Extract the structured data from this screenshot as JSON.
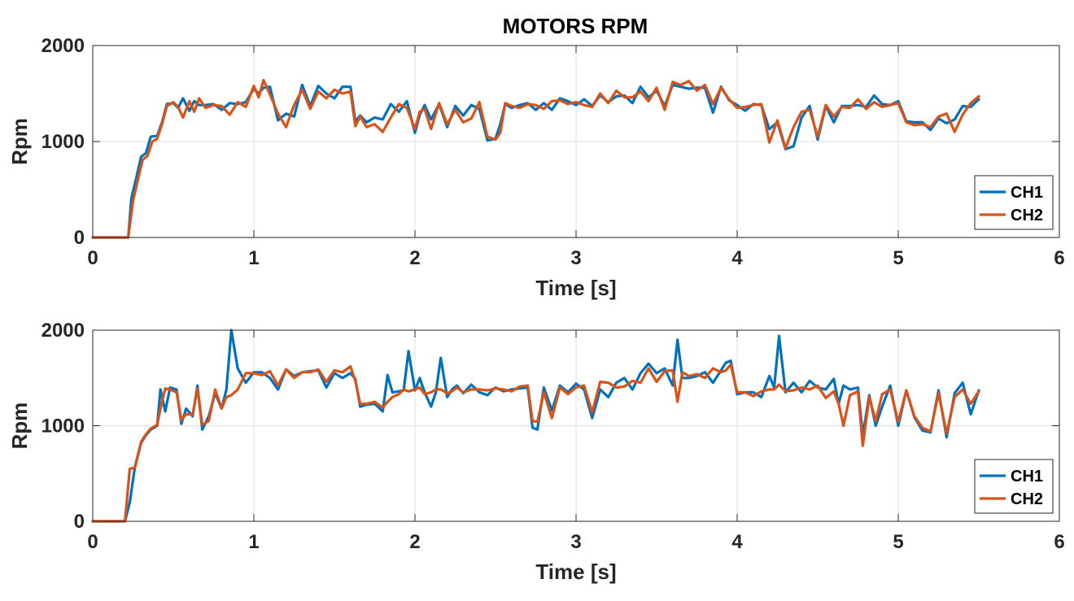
{
  "figure": {
    "title": "MOTORS RPM"
  },
  "legend": {
    "entries": [
      "CH1",
      "CH2"
    ]
  },
  "chart_data": [
    {
      "type": "line",
      "title": "MOTORS RPM",
      "xlabel": "Time [s]",
      "ylabel": "Rpm",
      "xlim": [
        0,
        6
      ],
      "ylim": [
        0,
        2000
      ],
      "xticks": [
        "0",
        "1",
        "2",
        "3",
        "4",
        "5",
        "6"
      ],
      "yticks": [
        "0",
        "1000",
        "2000"
      ],
      "grid": true,
      "legend_position": "bottom-right",
      "colors": {
        "CH1": "#0072BD",
        "CH2": "#D95319"
      },
      "series": [
        {
          "name": "CH1",
          "x": [
            0,
            0.1,
            0.22,
            0.24,
            0.27,
            0.3,
            0.33,
            0.36,
            0.4,
            0.43,
            0.46,
            0.5,
            0.53,
            0.56,
            0.6,
            0.63,
            0.66,
            0.7,
            0.75,
            0.8,
            0.85,
            0.9,
            0.95,
            1.0,
            1.03,
            1.06,
            1.1,
            1.15,
            1.2,
            1.25,
            1.3,
            1.35,
            1.4,
            1.45,
            1.5,
            1.55,
            1.6,
            1.63,
            1.66,
            1.7,
            1.75,
            1.8,
            1.85,
            1.9,
            1.95,
            2.0,
            2.03,
            2.06,
            2.1,
            2.15,
            2.2,
            2.25,
            2.3,
            2.35,
            2.4,
            2.45,
            2.5,
            2.53,
            2.56,
            2.6,
            2.65,
            2.7,
            2.75,
            2.8,
            2.85,
            2.9,
            2.95,
            3.0,
            3.05,
            3.1,
            3.15,
            3.2,
            3.25,
            3.3,
            3.35,
            3.4,
            3.45,
            3.5,
            3.55,
            3.6,
            3.65,
            3.7,
            3.75,
            3.8,
            3.85,
            3.9,
            3.95,
            4.0,
            4.05,
            4.1,
            4.15,
            4.2,
            4.25,
            4.3,
            4.35,
            4.4,
            4.45,
            4.5,
            4.55,
            4.6,
            4.65,
            4.7,
            4.75,
            4.8,
            4.85,
            4.9,
            4.95,
            5.0,
            5.05,
            5.1,
            5.15,
            5.2,
            5.25,
            5.3,
            5.35,
            5.4,
            5.45,
            5.5
          ],
          "y": [
            0,
            0,
            0,
            410,
            620,
            840,
            880,
            1050,
            1060,
            1200,
            1390,
            1400,
            1350,
            1450,
            1320,
            1420,
            1380,
            1380,
            1390,
            1330,
            1400,
            1390,
            1410,
            1550,
            1500,
            1560,
            1570,
            1220,
            1290,
            1260,
            1590,
            1370,
            1580,
            1500,
            1450,
            1570,
            1570,
            1210,
            1270,
            1200,
            1250,
            1230,
            1390,
            1310,
            1420,
            1090,
            1280,
            1380,
            1230,
            1390,
            1150,
            1370,
            1270,
            1380,
            1340,
            1010,
            1030,
            1180,
            1390,
            1350,
            1380,
            1400,
            1330,
            1400,
            1330,
            1450,
            1420,
            1380,
            1440,
            1370,
            1480,
            1410,
            1470,
            1480,
            1400,
            1570,
            1460,
            1530,
            1370,
            1590,
            1570,
            1550,
            1560,
            1560,
            1300,
            1570,
            1430,
            1380,
            1320,
            1390,
            1380,
            1130,
            1200,
            920,
            950,
            1250,
            1370,
            1020,
            1370,
            1200,
            1370,
            1370,
            1380,
            1360,
            1480,
            1390,
            1380,
            1420,
            1210,
            1200,
            1200,
            1120,
            1240,
            1190,
            1230,
            1370,
            1360,
            1440
          ]
        },
        {
          "name": "CH2",
          "x": [
            0,
            0.1,
            0.22,
            0.25,
            0.28,
            0.31,
            0.34,
            0.37,
            0.4,
            0.43,
            0.46,
            0.5,
            0.53,
            0.56,
            0.6,
            0.63,
            0.66,
            0.7,
            0.75,
            0.8,
            0.85,
            0.9,
            0.95,
            1.0,
            1.03,
            1.06,
            1.1,
            1.15,
            1.2,
            1.25,
            1.3,
            1.35,
            1.4,
            1.45,
            1.5,
            1.55,
            1.6,
            1.63,
            1.66,
            1.7,
            1.75,
            1.8,
            1.85,
            1.9,
            1.95,
            2.0,
            2.03,
            2.06,
            2.1,
            2.15,
            2.2,
            2.25,
            2.3,
            2.35,
            2.4,
            2.45,
            2.5,
            2.53,
            2.56,
            2.6,
            2.65,
            2.7,
            2.75,
            2.8,
            2.85,
            2.9,
            2.95,
            3.0,
            3.05,
            3.1,
            3.15,
            3.2,
            3.25,
            3.3,
            3.35,
            3.4,
            3.45,
            3.5,
            3.55,
            3.6,
            3.65,
            3.7,
            3.75,
            3.8,
            3.85,
            3.9,
            3.95,
            4.0,
            4.05,
            4.1,
            4.15,
            4.2,
            4.25,
            4.3,
            4.35,
            4.4,
            4.45,
            4.5,
            4.55,
            4.6,
            4.65,
            4.7,
            4.75,
            4.8,
            4.85,
            4.9,
            4.95,
            5.0,
            5.05,
            5.1,
            5.15,
            5.2,
            5.25,
            5.3,
            5.35,
            5.4,
            5.45,
            5.5
          ],
          "y": [
            0,
            0,
            0,
            380,
            600,
            810,
            850,
            1000,
            1030,
            1180,
            1370,
            1410,
            1360,
            1250,
            1420,
            1310,
            1450,
            1350,
            1380,
            1370,
            1280,
            1410,
            1360,
            1580,
            1460,
            1640,
            1490,
            1290,
            1150,
            1380,
            1540,
            1340,
            1520,
            1450,
            1540,
            1500,
            1520,
            1160,
            1260,
            1150,
            1180,
            1100,
            1250,
            1390,
            1350,
            1130,
            1310,
            1340,
            1130,
            1400,
            1180,
            1330,
            1200,
            1240,
            1410,
            1050,
            1020,
            1090,
            1400,
            1370,
            1350,
            1390,
            1380,
            1340,
            1420,
            1430,
            1390,
            1410,
            1380,
            1360,
            1500,
            1400,
            1530,
            1460,
            1460,
            1520,
            1420,
            1560,
            1330,
            1620,
            1590,
            1630,
            1530,
            1590,
            1390,
            1560,
            1440,
            1350,
            1360,
            1380,
            1390,
            990,
            1220,
            930,
            1150,
            1310,
            1330,
            1050,
            1380,
            1260,
            1360,
            1350,
            1440,
            1340,
            1410,
            1360,
            1380,
            1400,
            1200,
            1170,
            1180,
            1150,
            1260,
            1290,
            1100,
            1280,
            1400,
            1470
          ]
        }
      ]
    },
    {
      "type": "line",
      "title": "",
      "xlabel": "Time [s]",
      "ylabel": "Rpm",
      "xlim": [
        0,
        6
      ],
      "ylim": [
        0,
        2000
      ],
      "xticks": [
        "0",
        "1",
        "2",
        "3",
        "4",
        "5",
        "6"
      ],
      "yticks": [
        "0",
        "1000",
        "2000"
      ],
      "grid": true,
      "legend_position": "bottom-right",
      "colors": {
        "CH1": "#0072BD",
        "CH2": "#D95319"
      },
      "series": [
        {
          "name": "CH1",
          "x": [
            0,
            0.1,
            0.2,
            0.23,
            0.26,
            0.3,
            0.33,
            0.36,
            0.4,
            0.42,
            0.45,
            0.48,
            0.52,
            0.55,
            0.58,
            0.62,
            0.65,
            0.68,
            0.72,
            0.76,
            0.8,
            0.83,
            0.86,
            0.9,
            0.95,
            1.0,
            1.05,
            1.1,
            1.15,
            1.2,
            1.25,
            1.3,
            1.35,
            1.4,
            1.45,
            1.5,
            1.55,
            1.6,
            1.63,
            1.66,
            1.7,
            1.75,
            1.8,
            1.83,
            1.86,
            1.9,
            1.93,
            1.96,
            2.0,
            2.03,
            2.06,
            2.1,
            2.13,
            2.16,
            2.2,
            2.23,
            2.26,
            2.3,
            2.35,
            2.4,
            2.45,
            2.5,
            2.55,
            2.6,
            2.65,
            2.7,
            2.73,
            2.76,
            2.8,
            2.85,
            2.9,
            2.95,
            3.0,
            3.05,
            3.1,
            3.15,
            3.2,
            3.25,
            3.3,
            3.35,
            3.4,
            3.45,
            3.5,
            3.55,
            3.6,
            3.63,
            3.66,
            3.7,
            3.75,
            3.8,
            3.85,
            3.9,
            3.93,
            3.96,
            4.0,
            4.05,
            4.1,
            4.15,
            4.2,
            4.23,
            4.26,
            4.3,
            4.35,
            4.4,
            4.45,
            4.5,
            4.55,
            4.6,
            4.63,
            4.66,
            4.7,
            4.75,
            4.78,
            4.82,
            4.86,
            4.9,
            4.95,
            5.0,
            5.05,
            5.1,
            5.15,
            5.2,
            5.25,
            5.3,
            5.35,
            5.4,
            5.45,
            5.5
          ],
          "y": [
            0,
            0,
            0,
            200,
            550,
            820,
            900,
            960,
            1000,
            1380,
            1150,
            1400,
            1380,
            1020,
            1180,
            1100,
            1420,
            960,
            1100,
            1340,
            1180,
            1380,
            2000,
            1600,
            1450,
            1560,
            1560,
            1500,
            1380,
            1590,
            1520,
            1560,
            1570,
            1580,
            1400,
            1550,
            1500,
            1550,
            1490,
            1200,
            1220,
            1230,
            1150,
            1530,
            1350,
            1360,
            1370,
            1780,
            1370,
            1500,
            1350,
            1200,
            1350,
            1710,
            1300,
            1380,
            1420,
            1340,
            1430,
            1350,
            1320,
            1400,
            1360,
            1380,
            1390,
            1400,
            980,
            960,
            1400,
            1160,
            1420,
            1350,
            1440,
            1380,
            1080,
            1380,
            1300,
            1450,
            1500,
            1380,
            1550,
            1650,
            1550,
            1600,
            1420,
            1900,
            1500,
            1500,
            1520,
            1560,
            1450,
            1580,
            1660,
            1680,
            1330,
            1350,
            1350,
            1300,
            1520,
            1400,
            1940,
            1350,
            1450,
            1350,
            1470,
            1400,
            1380,
            1490,
            1230,
            1420,
            1380,
            1400,
            900,
            1320,
            1000,
            1200,
            1420,
            1000,
            1370,
            1090,
            950,
            930,
            1370,
            880,
            1340,
            1450,
            1120,
            1370
          ]
        },
        {
          "name": "CH2",
          "x": [
            0,
            0.1,
            0.2,
            0.23,
            0.26,
            0.3,
            0.33,
            0.36,
            0.4,
            0.42,
            0.45,
            0.48,
            0.52,
            0.55,
            0.58,
            0.62,
            0.65,
            0.68,
            0.72,
            0.76,
            0.8,
            0.83,
            0.86,
            0.9,
            0.95,
            1.0,
            1.05,
            1.1,
            1.15,
            1.2,
            1.25,
            1.3,
            1.35,
            1.4,
            1.45,
            1.5,
            1.55,
            1.6,
            1.63,
            1.66,
            1.7,
            1.75,
            1.8,
            1.83,
            1.86,
            1.9,
            1.93,
            1.96,
            2.0,
            2.03,
            2.06,
            2.1,
            2.13,
            2.16,
            2.2,
            2.23,
            2.26,
            2.3,
            2.35,
            2.4,
            2.45,
            2.5,
            2.55,
            2.6,
            2.65,
            2.7,
            2.73,
            2.76,
            2.8,
            2.85,
            2.9,
            2.95,
            3.0,
            3.05,
            3.1,
            3.15,
            3.2,
            3.25,
            3.3,
            3.35,
            3.4,
            3.45,
            3.5,
            3.55,
            3.6,
            3.63,
            3.66,
            3.7,
            3.75,
            3.8,
            3.85,
            3.9,
            3.93,
            3.96,
            4.0,
            4.05,
            4.1,
            4.15,
            4.2,
            4.23,
            4.26,
            4.3,
            4.35,
            4.4,
            4.45,
            4.5,
            4.55,
            4.6,
            4.63,
            4.66,
            4.7,
            4.75,
            4.78,
            4.82,
            4.86,
            4.9,
            4.95,
            5.0,
            5.05,
            5.1,
            5.15,
            5.2,
            5.25,
            5.3,
            5.35,
            5.4,
            5.45,
            5.5
          ],
          "y": [
            0,
            0,
            0,
            550,
            560,
            830,
            910,
            970,
            1010,
            1180,
            1390,
            1380,
            1350,
            1060,
            1120,
            1120,
            1390,
            1010,
            1050,
            1380,
            1180,
            1300,
            1320,
            1380,
            1550,
            1550,
            1530,
            1570,
            1420,
            1590,
            1500,
            1560,
            1560,
            1590,
            1460,
            1580,
            1560,
            1620,
            1470,
            1230,
            1230,
            1250,
            1190,
            1250,
            1300,
            1330,
            1380,
            1360,
            1380,
            1400,
            1330,
            1350,
            1380,
            1380,
            1340,
            1360,
            1400,
            1350,
            1380,
            1380,
            1370,
            1390,
            1380,
            1360,
            1410,
            1420,
            1050,
            1040,
            1350,
            1080,
            1400,
            1330,
            1400,
            1420,
            1140,
            1460,
            1450,
            1400,
            1410,
            1470,
            1450,
            1600,
            1460,
            1570,
            1580,
            1250,
            1560,
            1520,
            1540,
            1500,
            1600,
            1560,
            1580,
            1640,
            1350,
            1350,
            1310,
            1360,
            1380,
            1380,
            1430,
            1360,
            1370,
            1400,
            1380,
            1420,
            1290,
            1360,
            1230,
            1000,
            1320,
            1360,
            790,
            1300,
            1050,
            1330,
            1380,
            1040,
            1370,
            1100,
            980,
            940,
            1340,
            920,
            1300,
            1380,
            1230,
            1360
          ]
        }
      ]
    }
  ]
}
